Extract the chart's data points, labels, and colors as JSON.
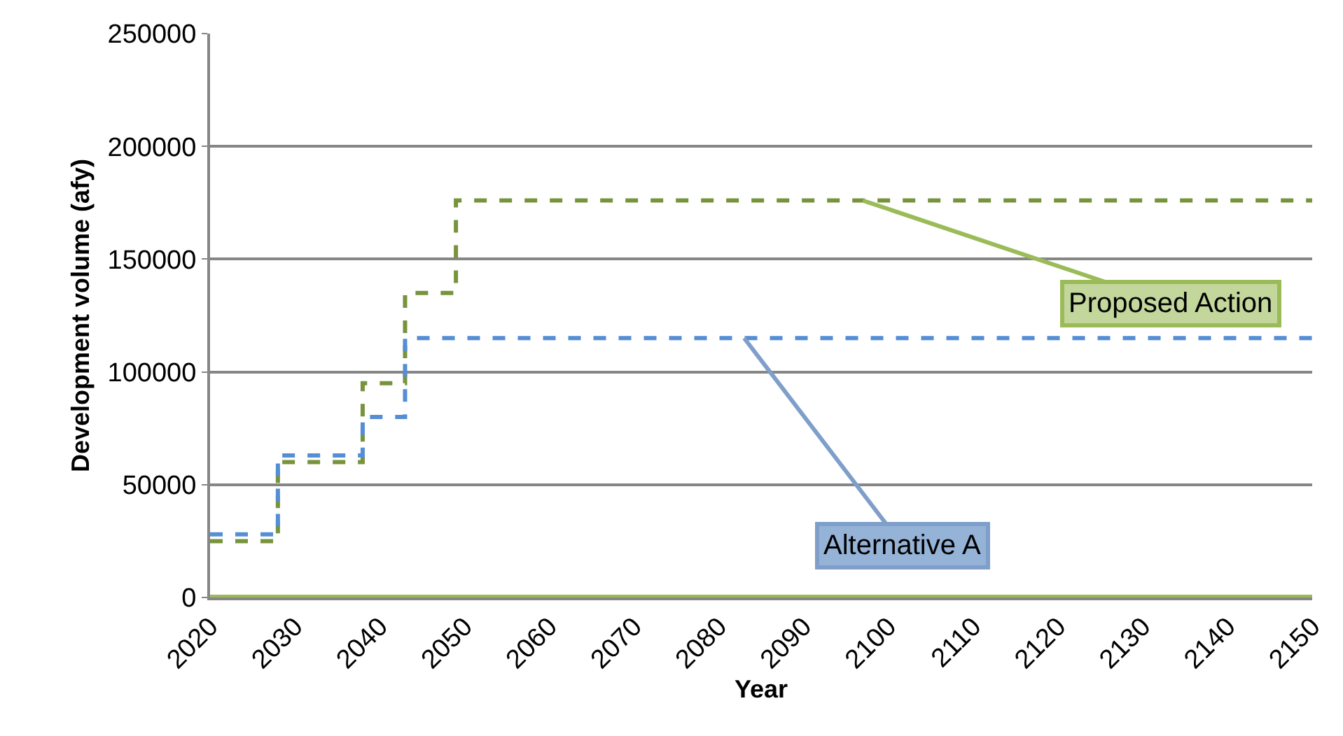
{
  "chart_data": {
    "type": "step",
    "xlabel": "Year",
    "ylabel": "Development volume (afy)",
    "xlim": [
      2020,
      2150
    ],
    "xticks": [
      2020,
      2030,
      2040,
      2050,
      2060,
      2070,
      2080,
      2090,
      2100,
      2110,
      2120,
      2130,
      2140,
      2150
    ],
    "ylim": [
      0,
      250000
    ],
    "yticks": [
      0,
      50000,
      100000,
      150000,
      200000,
      250000
    ],
    "grid": "y",
    "series": [
      {
        "color": "#9bbb59",
        "line_style": "solid",
        "x": [
          2020,
          2150
        ],
        "values": [
          0,
          0
        ]
      },
      {
        "color": "#77933c",
        "line_style": "dashed",
        "x": [
          2020,
          2028,
          2038,
          2043,
          2049,
          2150
        ],
        "values": [
          25000,
          60000,
          95000,
          135000,
          176000,
          176000
        ]
      },
      {
        "color": "#558ed5",
        "line_style": "dashed",
        "x": [
          2020,
          2028,
          2038,
          2043,
          2150
        ],
        "values": [
          28000,
          63000,
          80000,
          115000,
          115000
        ]
      }
    ],
    "annotations": [
      {
        "text": "Proposed Action",
        "x": 2097,
        "y": 176000
      },
      {
        "text": "Alternative A",
        "x": 2083,
        "y": 115000
      }
    ]
  }
}
